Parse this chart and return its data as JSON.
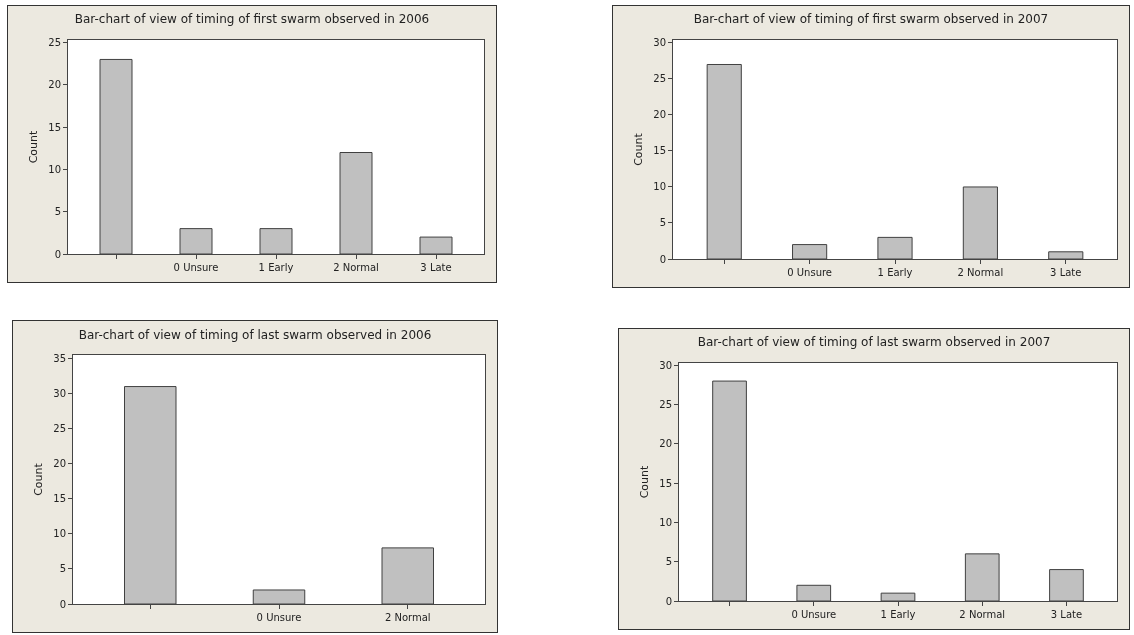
{
  "chart_data": [
    {
      "type": "bar",
      "title": "Bar-chart of view of timing of first swarm observed in 2006",
      "ylabel": "Count",
      "categories": [
        null,
        "0 Unsure",
        "1 Early",
        "2 Normal",
        "3 Late"
      ],
      "values": [
        23,
        3,
        3,
        12,
        2
      ],
      "color": "#c0c0c0",
      "ylim": [
        0,
        25.3
      ],
      "yticks": [
        0,
        5,
        10,
        15,
        20,
        25
      ],
      "grid": false
    },
    {
      "type": "bar",
      "title": "Bar-chart of view of timing of first swarm observed in 2007",
      "ylabel": "Count",
      "categories": [
        null,
        "0 Unsure",
        "1 Early",
        "2 Normal",
        "3 Late"
      ],
      "values": [
        27,
        2,
        3,
        10,
        1
      ],
      "color": "#c0c0c0",
      "ylim": [
        0,
        30.4
      ],
      "yticks": [
        0,
        5,
        10,
        15,
        20,
        25,
        30
      ],
      "grid": false
    },
    {
      "type": "bar",
      "title": "Bar-chart of view of timing of last swarm observed in 2006",
      "ylabel": "Count",
      "categories": [
        null,
        "0 Unsure",
        "2 Normal"
      ],
      "values": [
        31,
        2,
        8
      ],
      "color": "#c0c0c0",
      "ylim": [
        0,
        35.5
      ],
      "yticks": [
        0,
        5,
        10,
        15,
        20,
        25,
        30,
        35
      ],
      "grid": false
    },
    {
      "type": "bar",
      "title": "Bar-chart of view of timing of last swarm observed in 2007",
      "ylabel": "Count",
      "categories": [
        null,
        "0 Unsure",
        "1 Early",
        "2 Normal",
        "3 Late"
      ],
      "values": [
        28,
        2,
        1,
        6,
        4
      ],
      "color": "#c0c0c0",
      "ylim": [
        0,
        30.3
      ],
      "yticks": [
        0,
        5,
        10,
        15,
        20,
        25,
        30
      ],
      "grid": false
    }
  ]
}
